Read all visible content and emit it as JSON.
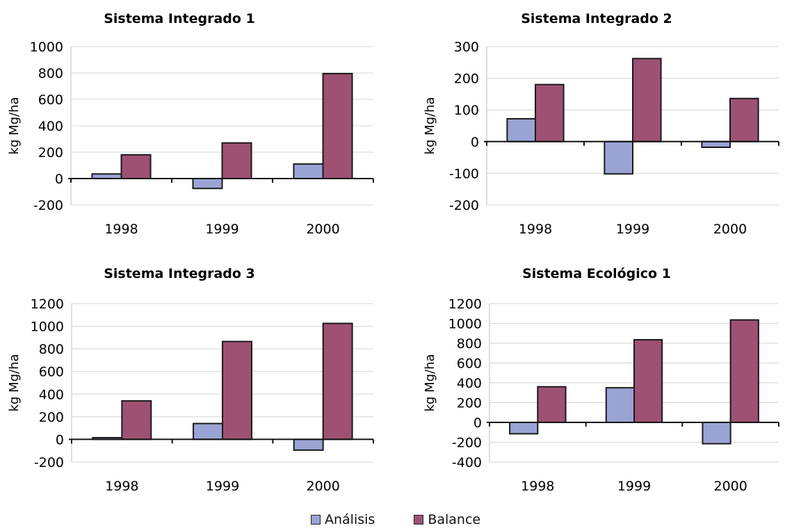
{
  "chart_data": [
    {
      "type": "bar",
      "title": "Sistema Integrado 1",
      "ylabel": "kg Mg/ha",
      "categories": [
        "1998",
        "1999",
        "2000"
      ],
      "yticks": [
        "1000",
        "800",
        "600",
        "400",
        "200",
        "0",
        "-200"
      ],
      "ylim": [
        -200,
        1000
      ],
      "series": [
        {
          "name": "Análisis",
          "values": [
            35,
            -75,
            110
          ]
        },
        {
          "name": "Balance",
          "values": [
            180,
            270,
            795
          ]
        }
      ]
    },
    {
      "type": "bar",
      "title": "Sistema Integrado 2",
      "ylabel": "kg Mg/ha",
      "categories": [
        "1998",
        "1999",
        "2000"
      ],
      "yticks": [
        "300",
        "200",
        "100",
        "0",
        "-100",
        "-200"
      ],
      "ylim": [
        -200,
        300
      ],
      "series": [
        {
          "name": "Análisis",
          "values": [
            72,
            -102,
            -18
          ]
        },
        {
          "name": "Balance",
          "values": [
            180,
            262,
            136
          ]
        }
      ]
    },
    {
      "type": "bar",
      "title": "Sistema Integrado 3",
      "ylabel": "kg Mg/ha",
      "categories": [
        "1998",
        "1999",
        "2000"
      ],
      "yticks": [
        "1200",
        "1000",
        "800",
        "600",
        "400",
        "200",
        "0",
        "-200"
      ],
      "ylim": [
        -200,
        1200
      ],
      "series": [
        {
          "name": "Análisis",
          "values": [
            15,
            140,
            -95
          ]
        },
        {
          "name": "Balance",
          "values": [
            340,
            865,
            1025
          ]
        }
      ]
    },
    {
      "type": "bar",
      "title": "Sistema Ecológico 1",
      "ylabel": "kg Mg/ha",
      "categories": [
        "1998",
        "1999",
        "2000"
      ],
      "yticks": [
        "1200",
        "1000",
        "800",
        "600",
        "400",
        "200",
        "0",
        "-200",
        "-400"
      ],
      "ylim": [
        -400,
        1200
      ],
      "series": [
        {
          "name": "Análisis",
          "values": [
            -115,
            350,
            -215
          ]
        },
        {
          "name": "Balance",
          "values": [
            360,
            835,
            1035
          ]
        }
      ]
    }
  ],
  "legend": {
    "items": [
      {
        "label": "Análisis",
        "color": "#9aa4d4"
      },
      {
        "label": "Balance",
        "color": "#9e5173"
      }
    ],
    "position": "bottom"
  },
  "colors": {
    "analisis": "#9aa4d4",
    "balance": "#9e5173",
    "gridline": "#d4d4d4",
    "axis": "#111111"
  }
}
